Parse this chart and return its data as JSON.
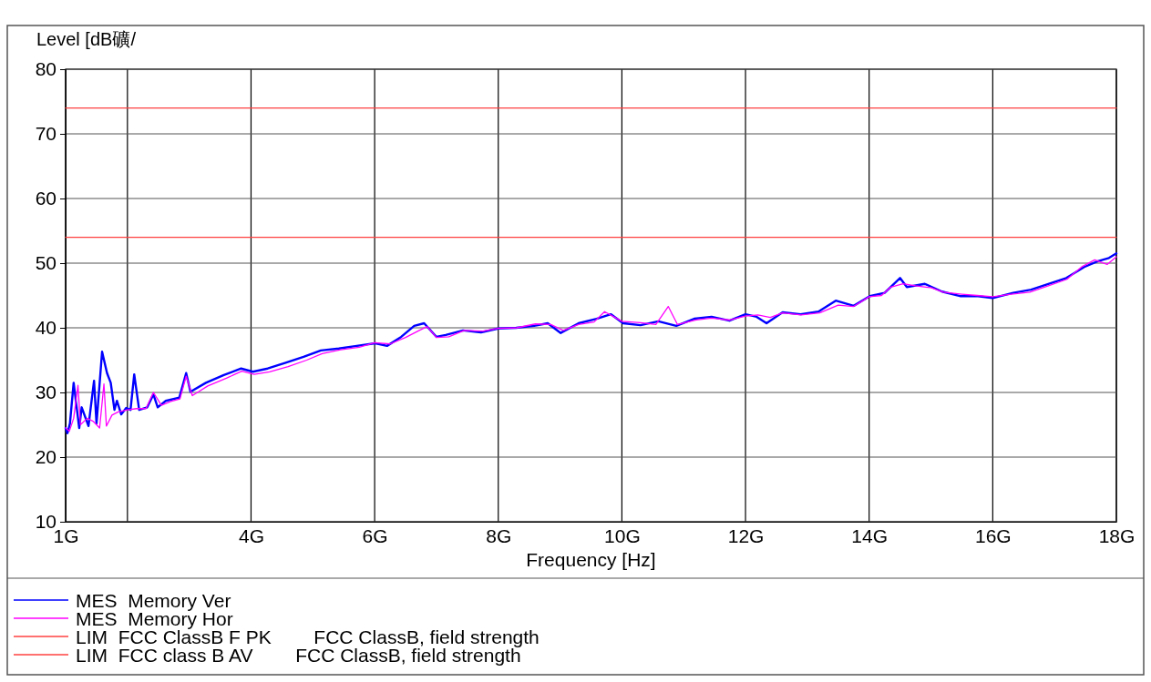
{
  "chart_data": {
    "type": "line",
    "ylabel": "Level [dB礦/",
    "xlabel": "Frequency [Hz]",
    "xlim": [
      1,
      18
    ],
    "ylim": [
      10,
      80
    ],
    "xticks": [
      {
        "value": 1,
        "label": "1G"
      },
      {
        "value": 2,
        "label": null
      },
      {
        "value": 4,
        "label": "4G"
      },
      {
        "value": 6,
        "label": "6G"
      },
      {
        "value": 8,
        "label": "8G"
      },
      {
        "value": 10,
        "label": "10G"
      },
      {
        "value": 12,
        "label": "12G"
      },
      {
        "value": 14,
        "label": "14G"
      },
      {
        "value": 16,
        "label": "16G"
      },
      {
        "value": 18,
        "label": "18G"
      }
    ],
    "yticks": [
      10,
      20,
      30,
      40,
      50,
      60,
      70,
      80
    ],
    "grid": true,
    "legend": "bottom",
    "series": [
      {
        "name": "MES  Memory Ver",
        "color": "#0000ff",
        "x": [
          1.0,
          1.03,
          1.07,
          1.13,
          1.22,
          1.26,
          1.37,
          1.46,
          1.5,
          1.59,
          1.67,
          1.73,
          1.79,
          1.83,
          1.9,
          1.98,
          2.05,
          2.11,
          2.19,
          2.32,
          2.42,
          2.49,
          2.62,
          2.84,
          2.95,
          3.02,
          3.27,
          3.56,
          3.84,
          4.03,
          4.27,
          4.56,
          4.85,
          5.13,
          5.42,
          5.71,
          6.01,
          6.2,
          6.43,
          6.64,
          6.8,
          7.0,
          7.15,
          7.43,
          7.72,
          8.0,
          8.29,
          8.58,
          8.8,
          9.01,
          9.3,
          9.59,
          9.82,
          10.02,
          10.3,
          10.59,
          10.88,
          11.17,
          11.45,
          11.74,
          12.0,
          12.18,
          12.34,
          12.6,
          12.89,
          13.18,
          13.46,
          13.75,
          14.01,
          14.25,
          14.5,
          14.61,
          14.9,
          15.18,
          15.47,
          15.76,
          16.0,
          16.33,
          16.62,
          16.91,
          17.19,
          17.48,
          17.7,
          17.88,
          18.0
        ],
        "values": [
          24.5,
          23.7,
          25.2,
          31.5,
          24.5,
          27.7,
          24.8,
          31.8,
          25.2,
          36.3,
          33.0,
          31.5,
          27.3,
          28.7,
          26.6,
          27.6,
          27.3,
          32.8,
          27.3,
          27.7,
          29.7,
          27.7,
          28.7,
          29.2,
          33.0,
          30.1,
          31.5,
          32.7,
          33.7,
          33.2,
          33.7,
          34.6,
          35.5,
          36.5,
          36.8,
          37.2,
          37.6,
          37.2,
          38.6,
          40.3,
          40.7,
          38.6,
          38.9,
          39.6,
          39.3,
          39.9,
          40.0,
          40.3,
          40.7,
          39.2,
          40.7,
          41.4,
          42.1,
          40.7,
          40.4,
          41.0,
          40.3,
          41.4,
          41.7,
          41.1,
          42.1,
          41.7,
          40.7,
          42.4,
          42.1,
          42.5,
          44.2,
          43.4,
          44.9,
          45.4,
          47.7,
          46.3,
          46.8,
          45.6,
          44.9,
          44.9,
          44.6,
          45.4,
          45.9,
          46.8,
          47.7,
          49.4,
          50.3,
          50.8,
          51.5
        ]
      },
      {
        "name": "MES  Memory Hor",
        "color": "#ff00ff",
        "x": [
          1.0,
          1.06,
          1.13,
          1.2,
          1.24,
          1.35,
          1.45,
          1.55,
          1.62,
          1.66,
          1.75,
          1.85,
          2.0,
          2.15,
          2.3,
          2.42,
          2.55,
          2.7,
          2.85,
          2.95,
          3.05,
          3.3,
          3.6,
          3.85,
          4.05,
          4.3,
          4.6,
          4.9,
          5.15,
          5.45,
          5.75,
          6.0,
          6.25,
          6.5,
          6.7,
          6.85,
          7.0,
          7.2,
          7.45,
          7.75,
          8.0,
          8.3,
          8.6,
          8.85,
          9.05,
          9.3,
          9.55,
          9.72,
          10.0,
          10.3,
          10.55,
          10.75,
          10.9,
          11.2,
          11.45,
          11.75,
          12.0,
          12.2,
          12.4,
          12.6,
          12.9,
          13.2,
          13.5,
          13.75,
          14.0,
          14.2,
          14.35,
          14.55,
          14.75,
          15.0,
          15.2,
          15.5,
          15.75,
          16.0,
          16.3,
          16.6,
          16.9,
          17.2,
          17.45,
          17.65,
          17.85,
          18.0
        ],
        "values": [
          24.5,
          24.0,
          26.0,
          31.1,
          25.0,
          26.0,
          25.5,
          24.5,
          31.3,
          24.8,
          26.5,
          27.0,
          27.3,
          27.5,
          27.5,
          30.0,
          28.0,
          28.6,
          29.0,
          32.5,
          29.5,
          31.0,
          32.2,
          33.3,
          32.8,
          33.2,
          34.0,
          35.0,
          36.0,
          36.6,
          37.0,
          37.7,
          37.5,
          38.5,
          39.5,
          40.2,
          38.5,
          38.6,
          39.6,
          39.5,
          39.9,
          40.0,
          40.6,
          40.5,
          39.6,
          40.5,
          40.9,
          42.5,
          41.0,
          40.8,
          40.5,
          43.3,
          40.5,
          41.2,
          41.5,
          41.2,
          41.8,
          42.0,
          41.6,
          42.3,
          42.0,
          42.3,
          43.5,
          43.3,
          44.8,
          45.0,
          46.3,
          46.8,
          46.5,
          46.2,
          45.5,
          45.2,
          45.0,
          44.8,
          45.2,
          45.5,
          46.5,
          47.5,
          49.5,
          50.5,
          49.8,
          51.0
        ]
      },
      {
        "name": "LIM  FCC ClassB F PK        FCC ClassB, field strength",
        "color": "#ff4040",
        "x": [
          1,
          18
        ],
        "values": [
          74,
          74
        ]
      },
      {
        "name": "LIM  FCC class B AV        FCC ClassB, field strength",
        "color": "#ff4040",
        "x": [
          1,
          18
        ],
        "values": [
          54,
          54
        ]
      }
    ]
  }
}
